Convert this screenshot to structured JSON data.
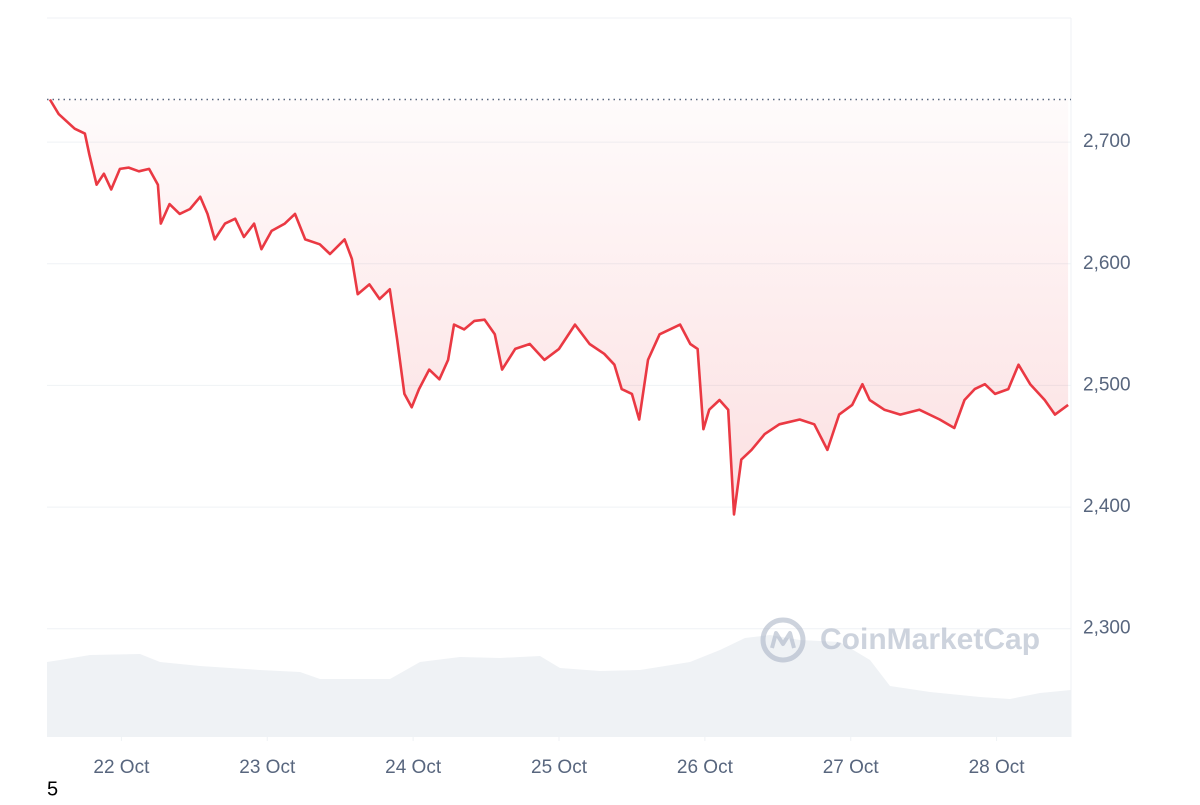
{
  "chart_data": {
    "type": "line",
    "color": "#ea3943",
    "reference_value": 2735,
    "watermark": "CoinMarketCap",
    "note": "5",
    "xlim": [
      21.49,
      28.51
    ],
    "ylim": [
      2211,
      2802
    ],
    "xticks": [
      {
        "value": 22,
        "label": "22 Oct"
      },
      {
        "value": 23,
        "label": "23 Oct"
      },
      {
        "value": 24,
        "label": "24 Oct"
      },
      {
        "value": 25,
        "label": "25 Oct"
      },
      {
        "value": 26,
        "label": "26 Oct"
      },
      {
        "value": 27,
        "label": "27 Oct"
      },
      {
        "value": 28,
        "label": "28 Oct"
      }
    ],
    "yticks": [
      {
        "value": 2300,
        "label": "2,300"
      },
      {
        "value": 2400,
        "label": "2,400"
      },
      {
        "value": 2500,
        "label": "2,500"
      },
      {
        "value": 2600,
        "label": "2,600"
      },
      {
        "value": 2700,
        "label": "2,700"
      }
    ],
    "grid": true,
    "x": [
      21.51,
      21.57,
      21.68,
      21.75,
      21.78,
      21.83,
      21.88,
      21.93,
      21.99,
      22.05,
      22.12,
      22.19,
      22.25,
      22.27,
      22.33,
      22.4,
      22.47,
      22.54,
      22.59,
      22.64,
      22.71,
      22.78,
      22.84,
      22.91,
      22.96,
      23.03,
      23.12,
      23.19,
      23.26,
      23.36,
      23.43,
      23.53,
      23.58,
      23.62,
      23.7,
      23.77,
      23.84,
      23.89,
      23.94,
      23.99,
      24.04,
      24.11,
      24.18,
      24.24,
      24.28,
      24.35,
      24.42,
      24.49,
      24.56,
      24.61,
      24.7,
      24.8,
      24.9,
      25.0,
      25.11,
      25.21,
      25.31,
      25.38,
      25.43,
      25.5,
      25.55,
      25.61,
      25.69,
      25.76,
      25.83,
      25.9,
      25.95,
      25.99,
      26.03,
      26.1,
      26.16,
      26.2,
      26.25,
      26.32,
      26.41,
      26.51,
      26.65,
      26.75,
      26.84,
      26.92,
      27.01,
      27.08,
      27.13,
      27.23,
      27.34,
      27.47,
      27.61,
      27.71,
      27.78,
      27.85,
      27.92,
      27.99,
      28.08,
      28.15,
      28.23,
      28.33,
      28.4,
      28.49
    ],
    "values": [
      2735,
      2723,
      2711,
      2707,
      2690,
      2665,
      2674,
      2661,
      2678,
      2679,
      2676,
      2678,
      2665,
      2633,
      2649,
      2641,
      2645,
      2655,
      2641,
      2620,
      2633,
      2637,
      2622,
      2633,
      2612,
      2627,
      2633,
      2641,
      2620,
      2616,
      2608,
      2620,
      2604,
      2575,
      2583,
      2571,
      2579,
      2538,
      2493,
      2482,
      2497,
      2513,
      2505,
      2521,
      2550,
      2546,
      2553,
      2554,
      2542,
      2513,
      2530,
      2534,
      2521,
      2530,
      2550,
      2534,
      2526,
      2517,
      2497,
      2493,
      2472,
      2521,
      2542,
      2546,
      2550,
      2534,
      2530,
      2464,
      2480,
      2488,
      2480,
      2394,
      2439,
      2447,
      2460,
      2468,
      2472,
      2468,
      2447,
      2476,
      2484,
      2501,
      2488,
      2480,
      2476,
      2480,
      2472,
      2465,
      2488,
      2497,
      2501,
      2493,
      2497,
      2517,
      2501,
      2488,
      2476,
      2484
    ]
  }
}
